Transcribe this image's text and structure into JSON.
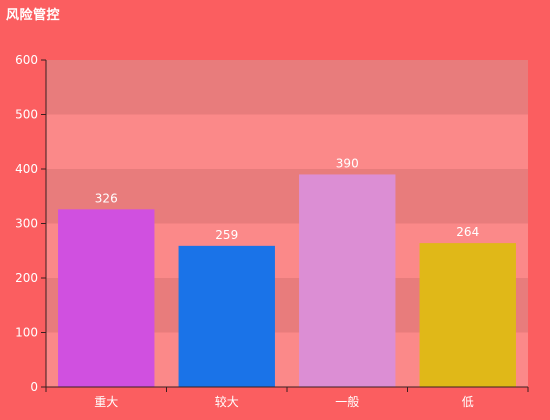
{
  "header": {
    "title": "风险管控"
  },
  "colors": {
    "background": "#fb5e60",
    "band_light": "#fb8989",
    "band_dark": "#e87c7c",
    "axis": "#3a1f1f",
    "text": "#ffffff"
  },
  "chart_data": {
    "type": "bar",
    "title": "风险管控",
    "categories": [
      "重大",
      "较大",
      "一般",
      "低"
    ],
    "values": [
      326,
      259,
      390,
      264
    ],
    "bar_colors": [
      "#d050e0",
      "#1a73e8",
      "#dc8ed4",
      "#e0b818"
    ],
    "xlabel": "",
    "ylabel": "",
    "ylim": [
      0,
      600
    ],
    "yticks": [
      0,
      100,
      200,
      300,
      400,
      500,
      600
    ],
    "grid": "alternating horizontal bands",
    "legend": "none"
  }
}
